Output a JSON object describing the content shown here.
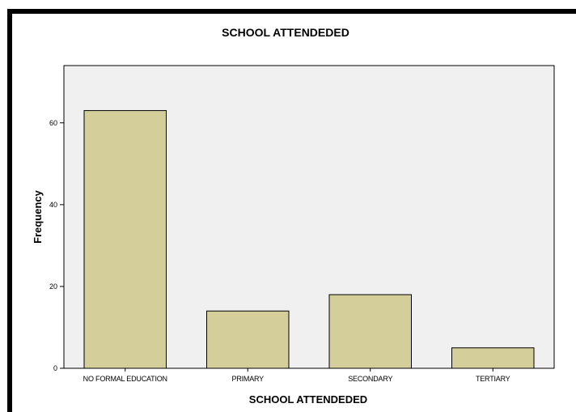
{
  "chart_data": {
    "type": "bar",
    "title": "SCHOOL ATTENDEDED",
    "xlabel": "SCHOOL ATTENDEDED",
    "ylabel": "Frequency",
    "categories": [
      "NO FORMAL EDUCATION",
      "PRIMARY",
      "SECONDARY",
      "TERTIARY"
    ],
    "values": [
      63,
      14,
      18,
      5
    ],
    "ylim": [
      0,
      74
    ],
    "yticks": [
      0,
      20,
      40,
      60
    ],
    "grid": false,
    "legend": "none",
    "colors": {
      "bar_fill": "#D3CE9A",
      "bar_stroke": "#000000",
      "plot_background": "#F0F0F0"
    }
  }
}
